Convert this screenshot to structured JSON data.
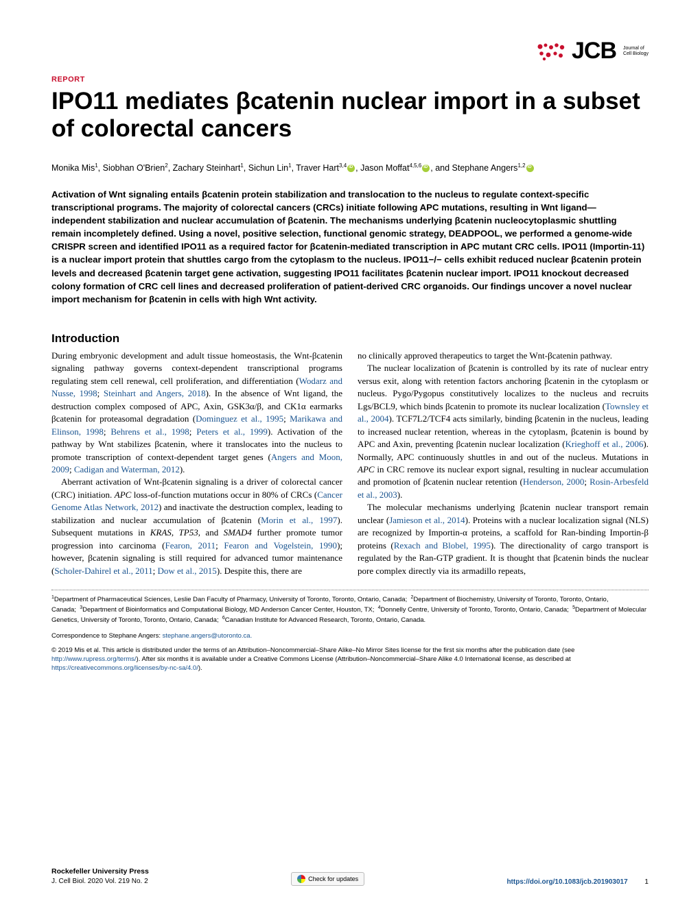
{
  "journal": {
    "logo_letters": "JCB",
    "logo_sub1": "Journal of",
    "logo_sub2": "Cell Biology",
    "logo_color": "#000000",
    "icon_color": "#c8102e"
  },
  "article_type": "REPORT",
  "title": "IPO11 mediates βcatenin nuclear import in a subset of colorectal cancers",
  "authors_html": "Monika Mis<sup>1</sup>, Siobhan O'Brien<sup>2</sup>, Zachary Steinhart<sup>1</sup>, Sichun Lin<sup>1</sup>, Traver Hart<sup>3,4</sup><span class='orcid'></span>, Jason Moffat<sup>4,5,6</sup><span class='orcid'></span>, and Stephane Angers<sup>1,2</sup><span class='orcid'></span>",
  "abstract": "Activation of Wnt signaling entails βcatenin protein stabilization and translocation to the nucleus to regulate context-specific transcriptional programs. The majority of colorectal cancers (CRCs) initiate following APC mutations, resulting in Wnt ligand—independent stabilization and nuclear accumulation of βcatenin. The mechanisms underlying βcatenin nucleocytoplasmic shuttling remain incompletely defined. Using a novel, positive selection, functional genomic strategy, DEADPOOL, we performed a genome-wide CRISPR screen and identified IPO11 as a required factor for βcatenin-mediated transcription in APC mutant CRC cells. IPO11 (Importin-11) is a nuclear import protein that shuttles cargo from the cytoplasm to the nucleus. IPO11−/− cells exhibit reduced nuclear βcatenin protein levels and decreased βcatenin target gene activation, suggesting IPO11 facilitates βcatenin nuclear import. IPO11 knockout decreased colony formation of CRC cell lines and decreased proliferation of patient-derived CRC organoids. Our findings uncover a novel nuclear import mechanism for βcatenin in cells with high Wnt activity.",
  "intro_heading": "Introduction",
  "col1": {
    "p1a": "During embryonic development and adult tissue homeostasis, the Wnt-βcatenin signaling pathway governs context-dependent transcriptional programs regulating stem cell renewal, cell proliferation, and differentiation (",
    "r1": "Wodarz and Nusse, 1998",
    "p1b": "; ",
    "r2": "Steinhart and Angers, 2018",
    "p1c": "). In the absence of Wnt ligand, the destruction complex composed of APC, Axin, GSK3α/β, and CK1α earmarks βcatenin for proteasomal degradation (",
    "r3": "Dominguez et al., 1995",
    "p1d": "; ",
    "r4": "Marikawa and Elinson, 1998",
    "p1e": "; ",
    "r5": "Behrens et al., 1998",
    "p1f": "; ",
    "r6": "Peters et al., 1999",
    "p1g": "). Activation of the pathway by Wnt stabilizes βcatenin, where it translocates into the nucleus to promote transcription of context-dependent target genes (",
    "r7": "Angers and Moon, 2009",
    "p1h": "; ",
    "r8": "Cadigan and Waterman, 2012",
    "p1i": ").",
    "p2a": "Aberrant activation of Wnt-βcatenin signaling is a driver of colorectal cancer (CRC) initiation. ",
    "it1": "APC",
    "p2b": " loss-of-function mutations occur in 80% of CRCs (",
    "r9": "Cancer Genome Atlas Network, 2012",
    "p2c": ") and inactivate the destruction complex, leading to stabilization and nuclear accumulation of βcatenin (",
    "r10": "Morin et al., 1997",
    "p2d": "). Subsequent mutations in ",
    "it2": "KRAS",
    "p2e": ", ",
    "it3": "TP53",
    "p2f": ", and ",
    "it4": "SMAD4",
    "p2g": " further promote tumor progression into carcinoma (",
    "r11": "Fearon, 2011",
    "p2h": "; ",
    "r12": "Fearon and Vogelstein, 1990",
    "p2i": "); however, βcatenin signaling is still required for advanced tumor maintenance (",
    "r13": "Scholer-Dahirel et al., 2011",
    "p2j": "; ",
    "r14": "Dow et al., 2015",
    "p2k": "). Despite this, there are"
  },
  "col2": {
    "p1": "no clinically approved therapeutics to target the Wnt-βcatenin pathway.",
    "p2a": "The nuclear localization of βcatenin is controlled by its rate of nuclear entry versus exit, along with retention factors anchoring βcatenin in the cytoplasm or nucleus. Pygo/Pygopus constitutively localizes to the nucleus and recruits Lgs/BCL9, which binds βcatenin to promote its nuclear localization (",
    "r1": "Townsley et al., 2004",
    "p2b": "). TCF7L2/TCF4 acts similarly, binding βcatenin in the nucleus, leading to increased nuclear retention, whereas in the cytoplasm, βcatenin is bound by APC and Axin, preventing βcatenin nuclear localization (",
    "r2": "Krieghoff et al., 2006",
    "p2c": "). Normally, APC continuously shuttles in and out of the nucleus. Mutations in ",
    "it1": "APC",
    "p2d": " in CRC remove its nuclear export signal, resulting in nuclear accumulation and promotion of βcatenin nuclear retention (",
    "r3": "Henderson, 2000",
    "p2e": "; ",
    "r4": "Rosin-Arbesfeld et al., 2003",
    "p2f": ").",
    "p3a": "The molecular mechanisms underlying βcatenin nuclear transport remain unclear (",
    "r5": "Jamieson et al., 2014",
    "p3b": "). Proteins with a nuclear localization signal (NLS) are recognized by Importin-α proteins, a scaffold for Ran-binding Importin-β proteins (",
    "r6": "Rexach and Blobel, 1995",
    "p3c": "). The directionality of cargo transport is regulated by the Ran-GTP gradient. It is thought that βcatenin binds the nuclear pore complex directly via its armadillo repeats,"
  },
  "affiliations_html": "<sup>1</sup>Department of Pharmaceutical Sciences, Leslie Dan Faculty of Pharmacy, University of Toronto, Toronto, Ontario, Canada;&nbsp;&nbsp;<sup>2</sup>Department of Biochemistry, University of Toronto, Toronto, Ontario, Canada;&nbsp;&nbsp;<sup>3</sup>Department of Bioinformatics and Computational Biology, MD Anderson Cancer Center, Houston, TX;&nbsp;&nbsp;<sup>4</sup>Donnelly Centre, University of Toronto, Toronto, Ontario, Canada;&nbsp;&nbsp;<sup>5</sup>Department of Molecular Genetics, University of Toronto, Toronto, Ontario, Canada;&nbsp;&nbsp;<sup>6</sup>Canadian Institute for Advanced Research, Toronto, Ontario, Canada.",
  "correspondence_label": "Correspondence to Stephane Angers: ",
  "correspondence_email": "stephane.angers@utoronto.ca.",
  "license_a": "© 2019 Mis et al. This article is distributed under the terms of an Attribution–Noncommercial–Share Alike–No Mirror Sites license for the first six months after the publication date (see ",
  "license_link1": "http://www.rupress.org/terms/",
  "license_b": "). After six months it is available under a Creative Commons License (Attribution–Noncommercial–Share Alike 4.0 International license, as described at ",
  "license_link2": "https://creativecommons.org/licenses/by-nc-sa/4.0/",
  "license_c": ").",
  "footer": {
    "press": "Rockefeller University Press",
    "citation": "J. Cell Biol. 2020 Vol. 219 No. 2",
    "crossmark": "Check for updates",
    "doi": "https://doi.org/10.1083/jcb.201903017",
    "page": "1"
  },
  "colors": {
    "accent": "#c8102e",
    "link": "#1a5490",
    "text": "#000000",
    "bg": "#ffffff"
  },
  "typography": {
    "title_fontsize": 35,
    "abstract_fontsize": 13.2,
    "body_fontsize": 13,
    "heading_fontsize": 17,
    "footer_fontsize": 10,
    "affil_fontsize": 9.5
  }
}
